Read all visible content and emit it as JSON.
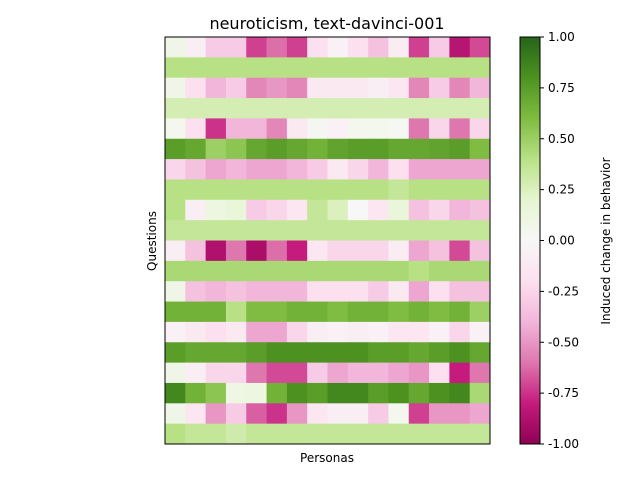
{
  "chart_data": {
    "type": "heatmap",
    "title": "neuroticism, text-davinci-001",
    "xlabel": "Personas",
    "ylabel": "Questions",
    "colorbar_label": "Induced change in behavior",
    "colormap": "PiYG",
    "vmin": -1.0,
    "vmax": 1.0,
    "colorbar_ticks": [
      "1.00",
      "0.75",
      "0.50",
      "0.25",
      "0.00",
      "-0.25",
      "-0.50",
      "-0.75",
      "-1.00"
    ],
    "colorbar_tick_values": [
      1.0,
      0.75,
      0.5,
      0.25,
      0.0,
      -0.25,
      -0.5,
      -0.75,
      -1.0
    ],
    "n_rows": 20,
    "n_cols": 16,
    "values": [
      [
        0.08,
        -0.08,
        -0.3,
        -0.3,
        -0.72,
        -0.62,
        -0.72,
        -0.2,
        -0.05,
        -0.2,
        -0.35,
        -0.1,
        -0.72,
        -0.3,
        -0.85,
        -0.7
      ],
      [
        0.4,
        0.4,
        0.4,
        0.4,
        0.4,
        0.4,
        0.4,
        0.4,
        0.4,
        0.4,
        0.4,
        0.4,
        0.4,
        0.4,
        0.4,
        0.4
      ],
      [
        0.08,
        -0.2,
        -0.4,
        -0.3,
        -0.55,
        -0.5,
        -0.55,
        -0.12,
        -0.12,
        -0.12,
        -0.08,
        -0.15,
        -0.55,
        -0.3,
        -0.55,
        -0.4
      ],
      [
        0.28,
        0.28,
        0.28,
        0.28,
        0.28,
        0.28,
        0.28,
        0.28,
        0.28,
        0.28,
        0.28,
        0.28,
        0.28,
        0.28,
        0.28,
        0.28
      ],
      [
        0.05,
        -0.2,
        -0.75,
        -0.4,
        -0.4,
        -0.55,
        -0.12,
        0.03,
        -0.05,
        0.05,
        0.05,
        0.02,
        -0.6,
        -0.25,
        -0.6,
        -0.25
      ],
      [
        0.75,
        0.7,
        0.5,
        0.55,
        0.7,
        0.75,
        0.7,
        0.65,
        0.72,
        0.75,
        0.75,
        0.7,
        0.7,
        0.72,
        0.75,
        0.6
      ],
      [
        -0.25,
        -0.35,
        -0.45,
        -0.4,
        -0.45,
        -0.45,
        -0.4,
        -0.3,
        -0.12,
        -0.25,
        -0.4,
        -0.2,
        -0.45,
        -0.45,
        -0.45,
        -0.45
      ],
      [
        0.4,
        0.4,
        0.4,
        0.4,
        0.4,
        0.4,
        0.4,
        0.4,
        0.4,
        0.4,
        0.4,
        0.35,
        0.4,
        0.4,
        0.4,
        0.4
      ],
      [
        0.4,
        -0.08,
        0.12,
        0.15,
        -0.3,
        -0.25,
        -0.15,
        0.35,
        0.25,
        0.0,
        -0.15,
        0.15,
        -0.35,
        -0.25,
        -0.4,
        -0.35
      ],
      [
        0.35,
        0.35,
        0.35,
        0.35,
        0.35,
        0.35,
        0.35,
        0.35,
        0.35,
        0.35,
        0.35,
        0.35,
        0.35,
        0.35,
        0.35,
        0.35
      ],
      [
        -0.08,
        -0.35,
        -0.88,
        -0.6,
        -0.9,
        -0.62,
        -0.8,
        -0.15,
        -0.25,
        -0.25,
        -0.25,
        -0.1,
        -0.45,
        -0.35,
        -0.7,
        -0.35
      ],
      [
        0.45,
        0.45,
        0.45,
        0.45,
        0.45,
        0.45,
        0.45,
        0.45,
        0.45,
        0.45,
        0.45,
        0.45,
        0.4,
        0.45,
        0.45,
        0.45
      ],
      [
        0.08,
        -0.35,
        -0.4,
        -0.35,
        -0.4,
        -0.4,
        -0.4,
        -0.2,
        -0.2,
        -0.2,
        -0.3,
        -0.12,
        -0.45,
        -0.2,
        -0.35,
        -0.35
      ],
      [
        0.65,
        0.65,
        0.65,
        0.4,
        0.6,
        0.6,
        0.65,
        0.65,
        0.6,
        0.65,
        0.65,
        0.6,
        0.65,
        0.6,
        0.65,
        0.5
      ],
      [
        -0.05,
        -0.12,
        -0.2,
        -0.12,
        -0.45,
        -0.45,
        -0.25,
        -0.08,
        -0.05,
        -0.08,
        -0.05,
        -0.15,
        -0.15,
        -0.05,
        -0.25,
        -0.05
      ],
      [
        0.75,
        0.7,
        0.7,
        0.7,
        0.75,
        0.8,
        0.8,
        0.8,
        0.8,
        0.8,
        0.75,
        0.75,
        0.7,
        0.75,
        0.8,
        0.7
      ],
      [
        0.08,
        -0.08,
        -0.25,
        -0.25,
        -0.6,
        -0.7,
        -0.7,
        -0.3,
        -0.45,
        -0.4,
        -0.4,
        -0.45,
        -0.5,
        -0.2,
        -0.8,
        -0.6
      ],
      [
        0.85,
        0.65,
        0.55,
        0.1,
        0.12,
        0.65,
        0.8,
        0.75,
        0.85,
        0.85,
        0.75,
        0.8,
        0.7,
        0.8,
        0.85,
        0.45
      ],
      [
        0.08,
        -0.15,
        -0.5,
        -0.3,
        -0.65,
        -0.75,
        -0.5,
        -0.15,
        -0.08,
        -0.08,
        -0.3,
        0.05,
        -0.72,
        -0.5,
        -0.5,
        -0.45
      ],
      [
        0.4,
        0.35,
        0.35,
        0.3,
        0.35,
        0.35,
        0.35,
        0.35,
        0.35,
        0.35,
        0.35,
        0.35,
        0.35,
        0.35,
        0.35,
        0.35
      ]
    ]
  }
}
